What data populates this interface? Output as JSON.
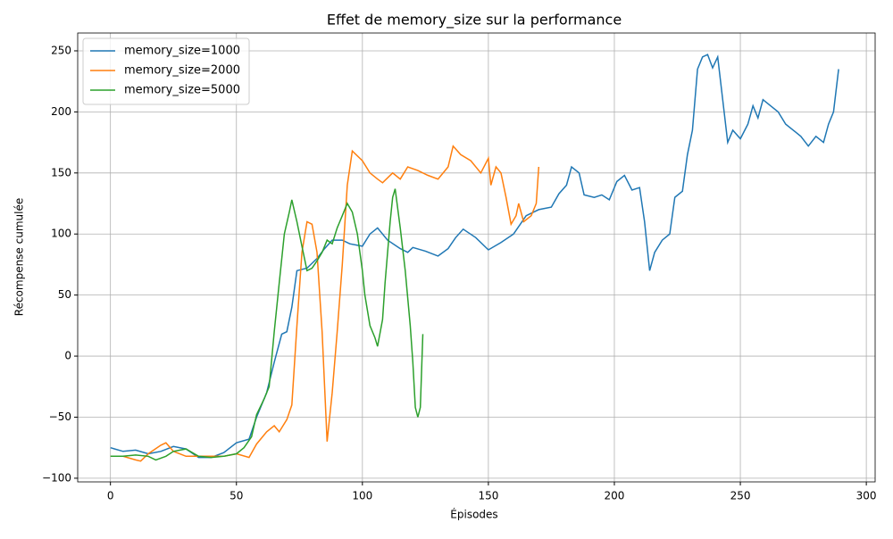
{
  "chart_data": {
    "type": "line",
    "title": "Effet de memory_size sur la performance",
    "x_label": "Épisodes",
    "y_label": "Récompense cumulée",
    "xlim": [
      -13,
      303.5
    ],
    "ylim": [
      -103,
      264.6
    ],
    "xticks": [
      0,
      50,
      100,
      150,
      200,
      250,
      300
    ],
    "yticks": [
      {
        "value": -100,
        "label": "−100"
      },
      {
        "value": -50,
        "label": "−50"
      },
      0,
      50,
      100,
      150,
      200,
      250
    ],
    "grid": true,
    "legend": "upper-left",
    "series": [
      {
        "name": "memory_size=1000",
        "color": "#1f77b4",
        "x": [
          0,
          5,
          10,
          15,
          20,
          25,
          30,
          35,
          40,
          45,
          50,
          55,
          58,
          62,
          65,
          68,
          70,
          72,
          74,
          78,
          82,
          85,
          88,
          92,
          95,
          100,
          103,
          106,
          110,
          115,
          118,
          120,
          125,
          130,
          134,
          137,
          140,
          145,
          150,
          155,
          160,
          165,
          170,
          175,
          178,
          181,
          183,
          186,
          188,
          192,
          195,
          198,
          201,
          204,
          207,
          210,
          212,
          214,
          216,
          219,
          222,
          224,
          227,
          229,
          231,
          233,
          235,
          237,
          239,
          241,
          243,
          245,
          247,
          250,
          253,
          255,
          257,
          259,
          262,
          265,
          268,
          271,
          274,
          277,
          280,
          283,
          285,
          287,
          289
        ],
        "values": [
          -75,
          -78,
          -77,
          -80,
          -78,
          -74,
          -76,
          -83,
          -83,
          -79,
          -71,
          -68,
          -50,
          -30,
          -5,
          18,
          20,
          40,
          70,
          72,
          80,
          88,
          95,
          95,
          92,
          90,
          100,
          105,
          95,
          88,
          85,
          89,
          86,
          82,
          88,
          97,
          104,
          97,
          87,
          93,
          100,
          115,
          120,
          122,
          133,
          140,
          155,
          150,
          132,
          130,
          132,
          128,
          143,
          148,
          136,
          138,
          110,
          70,
          85,
          95,
          100,
          130,
          135,
          165,
          185,
          235,
          245,
          247,
          236,
          245,
          210,
          175,
          185,
          178,
          190,
          205,
          195,
          210,
          205,
          200,
          190,
          185,
          180,
          172,
          180,
          175,
          190,
          200,
          235
        ]
      },
      {
        "name": "memory_size=2000",
        "color": "#ff7f0e",
        "x": [
          0,
          5,
          10,
          12,
          15,
          20,
          22,
          25,
          30,
          35,
          40,
          45,
          50,
          55,
          58,
          62,
          65,
          67,
          70,
          72,
          74,
          76,
          78,
          80,
          82,
          84,
          86,
          88,
          90,
          92,
          94,
          96,
          100,
          103,
          106,
          108,
          112,
          115,
          118,
          122,
          126,
          130,
          134,
          136,
          139,
          143,
          147,
          150,
          151,
          153,
          155,
          157,
          159,
          161,
          162,
          164,
          167,
          169,
          170
        ],
        "values": [
          -82,
          -82,
          -85,
          -86,
          -80,
          -73,
          -71,
          -78,
          -82,
          -82,
          -82,
          -82,
          -80,
          -83,
          -72,
          -62,
          -57,
          -62,
          -52,
          -40,
          25,
          85,
          110,
          108,
          85,
          20,
          -70,
          -30,
          20,
          75,
          140,
          168,
          160,
          150,
          145,
          142,
          150,
          145,
          155,
          152,
          148,
          145,
          155,
          172,
          165,
          160,
          150,
          162,
          140,
          155,
          150,
          130,
          108,
          115,
          125,
          110,
          115,
          125,
          155
        ]
      },
      {
        "name": "memory_size=5000",
        "color": "#2ca02c",
        "x": [
          0,
          5,
          10,
          15,
          18,
          22,
          25,
          30,
          35,
          40,
          45,
          50,
          53,
          56,
          58,
          61,
          63,
          65,
          67,
          69,
          71,
          72,
          74,
          76,
          78,
          80,
          82,
          84,
          86,
          88,
          90,
          92,
          94,
          96,
          98,
          100,
          101,
          103,
          105,
          106,
          108,
          109,
          111,
          112,
          113,
          115,
          117,
          119,
          120,
          121,
          122,
          123,
          124
        ],
        "values": [
          -82,
          -82,
          -81,
          -82,
          -85,
          -82,
          -78,
          -76,
          -82,
          -83,
          -82,
          -80,
          -75,
          -66,
          -48,
          -35,
          -25,
          20,
          60,
          100,
          118,
          128,
          110,
          90,
          70,
          72,
          78,
          85,
          95,
          92,
          105,
          115,
          125,
          118,
          100,
          70,
          50,
          25,
          15,
          8,
          30,
          60,
          110,
          130,
          137,
          105,
          70,
          25,
          -5,
          -42,
          -50,
          -42,
          18
        ]
      }
    ]
  }
}
